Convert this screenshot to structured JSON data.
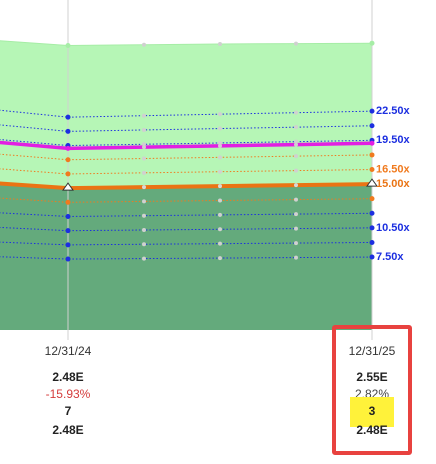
{
  "chart_data": {
    "type": "line",
    "categories": [
      null,
      "12/31/24",
      null,
      null,
      null,
      "12/31/25"
    ],
    "ylim": [
      0,
      86
    ],
    "series": [
      {
        "values": [
          76,
          74.6,
          74.8,
          75,
          75.1,
          75.2
        ],
        "color": "#a6eda6",
        "fill": "#b6f6b6",
        "width": 1
      },
      {
        "values": [
          57.83,
          55.8,
          56.19,
          56.59,
          56.98,
          57.38
        ],
        "color": "#1c2fe0",
        "dash": true,
        "width": 1,
        "label": "22.50x"
      },
      {
        "values": [
          53.97,
          52.08,
          52.45,
          52.82,
          53.18,
          53.55
        ],
        "color": "#1c2fe0",
        "dash": true,
        "width": 1
      },
      {
        "values": [
          50.12,
          48.36,
          48.7,
          49.04,
          49.38,
          49.73
        ],
        "color": "#1c2fe0",
        "dash": true,
        "width": 1,
        "label": "19.50x"
      },
      {
        "values": [
          46.26,
          44.64,
          44.96,
          45.27,
          45.59,
          45.9
        ],
        "color": "#f07a1e",
        "dash": true,
        "width": 1
      },
      {
        "values": [
          42.41,
          40.92,
          41.21,
          41.5,
          41.79,
          42.08
        ],
        "color": "#f07a1e",
        "dash": true,
        "width": 1,
        "label": "16.50x"
      },
      {
        "values": [
          34.7,
          33.48,
          33.72,
          33.95,
          34.19,
          34.43
        ],
        "color": "#f07a1e",
        "dash": true,
        "width": 1
      },
      {
        "values": [
          30.84,
          29.76,
          29.97,
          30.18,
          30.39,
          30.6
        ],
        "color": "#1c2fe0",
        "dash": true,
        "width": 1
      },
      {
        "values": [
          26.99,
          26.04,
          26.22,
          26.41,
          26.59,
          26.78
        ],
        "color": "#1c2fe0",
        "dash": true,
        "width": 1,
        "label": "10.50x"
      },
      {
        "values": [
          23.13,
          22.32,
          22.48,
          22.64,
          22.79,
          22.95
        ],
        "color": "#1c2fe0",
        "dash": true,
        "width": 1
      },
      {
        "values": [
          19.28,
          18.6,
          18.73,
          18.86,
          18.99,
          19.13
        ],
        "color": "#1c2fe0",
        "dash": true,
        "width": 1,
        "label": "7.50x"
      },
      {
        "values": [
          49.34,
          47.62,
          47.95,
          48.29,
          48.62,
          48.96
        ],
        "color": "#e21ee2",
        "width": 3.5
      },
      {
        "values": [
          38.55,
          37.2,
          37.46,
          37.73,
          37.99,
          38.25
        ],
        "color": "#ea7414",
        "width": 4,
        "fill_below": "#64aa7c",
        "marker": "triangle",
        "label": "15.00x"
      }
    ],
    "table": [
      [
        "2.48E",
        "-15.93%",
        "7",
        "2.48E"
      ],
      [
        "2.55E",
        "2.82%",
        "3",
        "2.48E"
      ]
    ],
    "bold_rows": [
      0,
      2,
      3
    ],
    "negative_color": "#d43b3b",
    "highlight": {
      "column": 1,
      "row": 2,
      "color": "#fff23a"
    },
    "selected_column": 1,
    "box_color": "#e8423f"
  }
}
